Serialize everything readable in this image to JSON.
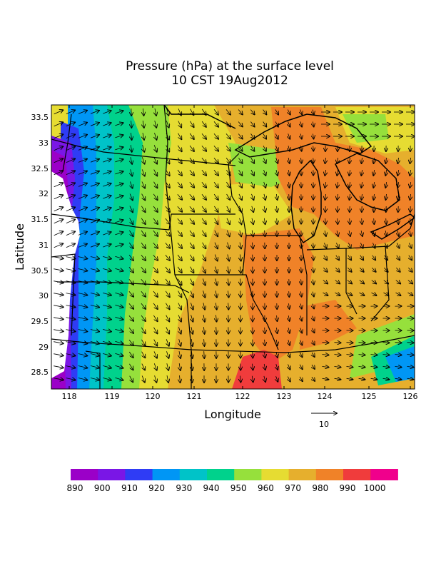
{
  "title": {
    "line1": "Pressure (hPa) at the surface level",
    "line2": "10 CST 19Aug2012"
  },
  "axes": {
    "xlabel": "Longitude",
    "ylabel": "Latitude",
    "x_ticks": [
      "118",
      "119",
      "120",
      "121",
      "122",
      "123",
      "124",
      "125",
      "126"
    ],
    "y_ticks": [
      "33.5",
      "33",
      "32.5",
      "32",
      "31.5",
      "31",
      "30.5",
      "30",
      "29.5",
      "29",
      "28.5"
    ]
  },
  "reference_vector": {
    "label": "10"
  },
  "colorbar": {
    "labels": [
      "890",
      "900",
      "910",
      "920",
      "930",
      "940",
      "950",
      "960",
      "970",
      "980",
      "990",
      "1000"
    ],
    "colors": [
      "#9b00c8",
      "#7a16e6",
      "#2f3cf5",
      "#0096f5",
      "#00c3c8",
      "#00d28c",
      "#96e03c",
      "#e6dc32",
      "#e6af2d",
      "#f08228",
      "#f03c3c",
      "#f0008c"
    ]
  },
  "map_palette": {
    "purple": "#9b00c8",
    "violet": "#7a16e6",
    "blue": "#2f3cf5",
    "skyblue": "#0096f5",
    "cyan": "#00c3c8",
    "teal": "#00d28c",
    "lightgreen": "#96e03c",
    "yellow": "#e6dc32",
    "gold": "#e6af2d",
    "orange": "#f08228",
    "red": "#f03c3c",
    "magenta": "#f0008c",
    "missing": "#ffffff"
  }
}
